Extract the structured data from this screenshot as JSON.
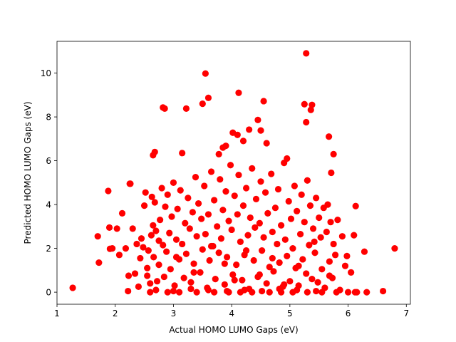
{
  "chart_data": {
    "type": "scatter",
    "title": "",
    "xlabel": "Actual HOMO LUMO Gaps (eV)",
    "ylabel": "Predicted HOMO LUMO Gaps (eV)",
    "xlim": [
      1.0,
      7.07
    ],
    "ylim": [
      -0.55,
      11.45
    ],
    "xticks": [
      1,
      2,
      3,
      4,
      5,
      6,
      7
    ],
    "yticks": [
      0,
      2,
      4,
      6,
      8,
      10
    ],
    "grid": false,
    "legend": "none",
    "marker_color": "#ff0000",
    "series": [
      {
        "x": [
          1.27,
          1.7,
          1.72,
          1.88,
          1.9,
          1.95,
          2.03,
          2.07,
          2.12,
          2.18,
          2.22,
          2.23,
          2.26,
          2.3,
          2.34,
          2.37,
          2.4,
          2.43,
          2.45,
          2.48,
          2.5,
          2.52,
          2.55,
          2.57,
          2.6,
          2.62,
          2.63,
          2.65,
          2.66,
          2.68,
          2.7,
          2.72,
          2.75,
          2.77,
          2.8,
          2.82,
          2.84,
          2.86,
          2.88,
          2.9,
          2.93,
          2.95,
          2.97,
          3.0,
          3.02,
          3.05,
          3.07,
          3.1,
          3.12,
          3.15,
          3.18,
          3.2,
          3.22,
          3.25,
          3.28,
          3.3,
          3.33,
          3.35,
          3.38,
          3.4,
          3.43,
          3.46,
          3.48,
          3.5,
          3.53,
          3.55,
          3.58,
          3.6,
          3.62,
          3.65,
          3.68,
          3.7,
          3.72,
          3.75,
          3.78,
          3.8,
          3.82,
          3.85,
          3.88,
          3.9,
          3.92,
          3.95,
          3.98,
          4.0,
          4.02,
          4.05,
          4.08,
          4.1,
          4.12,
          4.15,
          4.18,
          4.2,
          4.22,
          4.25,
          4.28,
          4.3,
          4.32,
          4.35,
          4.38,
          4.4,
          4.42,
          4.45,
          4.48,
          4.5,
          4.52,
          4.55,
          4.58,
          4.6,
          4.62,
          4.65,
          4.68,
          4.7,
          4.72,
          4.75,
          4.78,
          4.8,
          4.82,
          4.85,
          4.88,
          4.9,
          4.92,
          4.95,
          4.98,
          5.0,
          5.02,
          5.05,
          5.08,
          5.1,
          5.12,
          5.15,
          5.18,
          5.2,
          5.22,
          5.25,
          5.28,
          5.3,
          5.33,
          5.35,
          5.38,
          5.4,
          5.43,
          5.45,
          5.48,
          5.5,
          5.53,
          5.55,
          5.58,
          5.6,
          5.63,
          5.65,
          5.68,
          5.7,
          5.73,
          5.75,
          5.78,
          5.82,
          5.86,
          5.9,
          5.95,
          6.0,
          6.05,
          6.1,
          6.15,
          6.28,
          6.32,
          6.6,
          6.8,
          3.55,
          5.28,
          4.12,
          3.5,
          3.6,
          4.55,
          2.82,
          2.85,
          3.22,
          5.25,
          5.38,
          5.36,
          4.3,
          4.45,
          4.5,
          5.28,
          5.67,
          4.1,
          4.02,
          3.78,
          3.85,
          3.9,
          4.2,
          4.6,
          4.95,
          2.65,
          2.68,
          3.15,
          5.75,
          5.71,
          2.25,
          1.91,
          6.13,
          2.6,
          2.9,
          3.1,
          3.4,
          3.7,
          3.95,
          4.15,
          4.35,
          4.65,
          4.85,
          5.05,
          5.3,
          5.55,
          5.8,
          6.12,
          2.55,
          2.75,
          3.05,
          3.35,
          3.65,
          3.88,
          4.05,
          4.25,
          4.48,
          4.7,
          4.9,
          5.15,
          5.42,
          5.68,
          5.98,
          2.7,
          3.0,
          3.3,
          3.6,
          3.92,
          4.22,
          4.52,
          4.82,
          5.12,
          5.45
        ],
        "y": [
          0.2,
          2.55,
          1.35,
          4.62,
          2.95,
          2.0,
          2.9,
          1.7,
          3.6,
          2.0,
          0.05,
          0.75,
          4.95,
          2.9,
          0.85,
          2.2,
          0.25,
          1.55,
          2.45,
          2.05,
          3.95,
          4.55,
          0.75,
          1.9,
          0.4,
          2.6,
          4.35,
          3.05,
          1.6,
          4.1,
          2.8,
          0.5,
          1.25,
          3.3,
          4.75,
          2.15,
          0.7,
          3.9,
          1.85,
          4.45,
          2.7,
          1.05,
          3.45,
          5.0,
          0.3,
          2.4,
          3.8,
          1.5,
          4.65,
          2.2,
          0.65,
          3.15,
          1.75,
          4.3,
          2.9,
          0.45,
          3.65,
          1.3,
          5.25,
          2.55,
          4.05,
          0.9,
          3.35,
          1.95,
          4.85,
          2.65,
          0.2,
          3.55,
          1.45,
          5.5,
          2.1,
          4.2,
          0.6,
          3.0,
          1.8,
          5.15,
          2.45,
          3.75,
          0.35,
          4.6,
          1.6,
          3.25,
          5.8,
          2.85,
          0.8,
          4.4,
          1.25,
          3.55,
          5.35,
          2.3,
          0.55,
          3.95,
          1.7,
          4.75,
          2.6,
          0.15,
          3.4,
          5.65,
          1.45,
          2.95,
          4.25,
          0.7,
          3.15,
          5.05,
          1.9,
          2.5,
          4.55,
          0.4,
          3.6,
          1.15,
          5.4,
          2.75,
          0.95,
          3.85,
          2.2,
          4.7,
          1.35,
          3.05,
          0.25,
          5.9,
          2.4,
          1.65,
          4.15,
          0.5,
          3.35,
          2.0,
          4.85,
          1.1,
          3.7,
          0.3,
          2.65,
          4.45,
          1.5,
          3.2,
          0.85,
          5.1,
          2.15,
          3.95,
          0.6,
          2.9,
          1.8,
          4.3,
          0.45,
          3.4,
          2.5,
          1.05,
          3.85,
          0.2,
          2.75,
          4.0,
          1.4,
          3.2,
          0.65,
          2.2,
          1.7,
          3.3,
          0.1,
          2.55,
          1.2,
          0.0,
          0.9,
          2.6,
          0.0,
          1.85,
          0.0,
          0.05,
          2.0,
          9.98,
          10.9,
          9.1,
          8.6,
          8.87,
          8.72,
          8.43,
          8.38,
          8.38,
          8.58,
          8.55,
          8.32,
          7.42,
          7.86,
          7.38,
          7.76,
          7.1,
          7.18,
          7.28,
          6.3,
          6.6,
          6.68,
          6.9,
          6.8,
          6.1,
          6.25,
          6.4,
          6.35,
          6.3,
          5.45,
          4.95,
          1.98,
          3.93,
          0.0,
          0.0,
          0.0,
          0.0,
          0.0,
          0.0,
          0.0,
          0.0,
          0.0,
          0.0,
          0.0,
          0.0,
          0.0,
          0.0,
          0.0,
          1.1,
          2.35,
          1.6,
          0.9,
          2.1,
          1.3,
          0.55,
          1.9,
          0.8,
          1.55,
          0.35,
          1.2,
          2.3,
          0.75,
          1.65,
          0.1,
          0.05,
          0.15,
          0.1,
          0.05,
          0.1,
          0.05,
          0.15,
          0.1,
          0.05
        ]
      }
    ]
  }
}
